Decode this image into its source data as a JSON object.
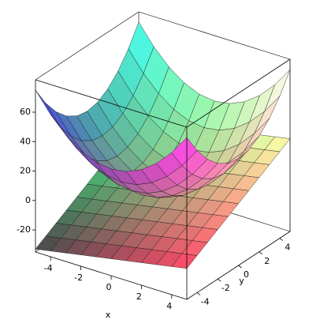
{
  "chart_data": {
    "type": "surface3d",
    "x_label": "x",
    "y_label": "y",
    "x": [
      -5,
      -4,
      -3,
      -2,
      -1,
      0,
      1,
      2,
      3,
      4,
      5
    ],
    "y": [
      -5,
      -4,
      -3,
      -2,
      -1,
      0,
      1,
      2,
      3,
      4,
      5
    ],
    "xlim": [
      -5,
      5
    ],
    "ylim": [
      -5,
      5
    ],
    "zlim": [
      -35,
      82
    ],
    "xticks": [
      -4,
      -2,
      0,
      2,
      4
    ],
    "yticks": [
      -4,
      -2,
      0,
      2,
      4
    ],
    "zticks": [
      -20,
      0,
      20,
      40,
      60
    ],
    "shading": "xyz",
    "surfaces": [
      {
        "z": [
          [
            75,
            61.5,
            51,
            43.5,
            39,
            37.5,
            39,
            43.5,
            51,
            61.5,
            75
          ],
          [
            61.5,
            48,
            37.5,
            30,
            25.5,
            24,
            25.5,
            30,
            37.5,
            48,
            61.5
          ],
          [
            51,
            37.5,
            27,
            19.5,
            15,
            13.5,
            15,
            19.5,
            27,
            37.5,
            51
          ],
          [
            43.5,
            30,
            19.5,
            12,
            7.5,
            6,
            7.5,
            12,
            19.5,
            30,
            43.5
          ],
          [
            39,
            25.5,
            15,
            7.5,
            3,
            1.5,
            3,
            7.5,
            15,
            25.5,
            39
          ],
          [
            37.5,
            24,
            13.5,
            6,
            1.5,
            0,
            1.5,
            6,
            13.5,
            24,
            37.5
          ],
          [
            39,
            25.5,
            15,
            7.5,
            3,
            1.5,
            3,
            7.5,
            15,
            25.5,
            39
          ],
          [
            43.5,
            30,
            19.5,
            12,
            7.5,
            6,
            7.5,
            12,
            19.5,
            30,
            43.5
          ],
          [
            51,
            37.5,
            27,
            19.5,
            15,
            13.5,
            15,
            19.5,
            27,
            37.5,
            51
          ],
          [
            61.5,
            48,
            37.5,
            30,
            25.5,
            24,
            25.5,
            30,
            37.5,
            48,
            61.5
          ],
          [
            75,
            61.5,
            51,
            43.5,
            39,
            37.5,
            39,
            43.5,
            51,
            61.5,
            75
          ]
        ]
      },
      {
        "z": [
          [
            -33,
            -28.8,
            -24.6,
            -20.4,
            -16.2,
            -12,
            -7.8,
            -3.6,
            0.6,
            4.8,
            9
          ],
          [
            -31.1,
            -26.9,
            -22.7,
            -18.5,
            -14.3,
            -10.1,
            -5.9,
            -1.7,
            2.5,
            6.7,
            10.9
          ],
          [
            -29.2,
            -25,
            -20.8,
            -16.6,
            -12.4,
            -8.2,
            -4,
            0.2,
            4.4,
            8.6,
            12.8
          ],
          [
            -27.3,
            -23.1,
            -18.9,
            -14.7,
            -10.5,
            -6.3,
            -2.1,
            2.1,
            6.3,
            10.5,
            14.7
          ],
          [
            -25.4,
            -21.2,
            -17,
            -12.8,
            -8.6,
            -4.4,
            -0.2,
            4,
            8.2,
            12.4,
            16.6
          ],
          [
            -23.5,
            -19.3,
            -15.1,
            -10.9,
            -6.7,
            -2.5,
            1.7,
            5.9,
            10.1,
            14.3,
            18.5
          ],
          [
            -21.6,
            -17.4,
            -13.2,
            -9,
            -4.8,
            -0.6,
            3.6,
            7.8,
            12,
            16.2,
            20.4
          ],
          [
            -19.7,
            -15.5,
            -11.3,
            -7.1,
            -2.9,
            1.3,
            5.5,
            9.7,
            13.9,
            18.1,
            22.3
          ],
          [
            -17.8,
            -13.6,
            -9.4,
            -5.2,
            -1,
            3.2,
            7.4,
            11.6,
            15.8,
            20,
            24.2
          ],
          [
            -15.9,
            -11.7,
            -7.5,
            -3.3,
            0.9,
            5.1,
            9.3,
            13.5,
            17.7,
            21.9,
            26.1
          ],
          [
            -14,
            -9.8,
            -5.6,
            -1.4,
            2.8,
            7,
            11.2,
            15.4,
            19.6,
            23.8,
            28
          ]
        ]
      }
    ]
  }
}
